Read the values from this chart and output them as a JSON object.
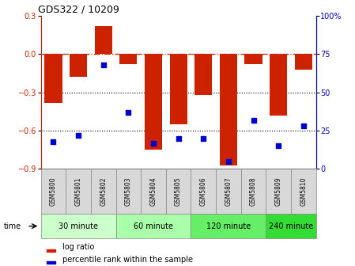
{
  "title": "GDS322 / 10209",
  "samples": [
    "GSM5800",
    "GSM5801",
    "GSM5802",
    "GSM5803",
    "GSM5804",
    "GSM5805",
    "GSM5806",
    "GSM5807",
    "GSM5808",
    "GSM5809",
    "GSM5810"
  ],
  "log_ratio": [
    -0.38,
    -0.18,
    0.22,
    -0.08,
    -0.75,
    -0.55,
    -0.32,
    -0.87,
    -0.08,
    -0.48,
    -0.12
  ],
  "percentile": [
    18,
    22,
    68,
    37,
    17,
    20,
    20,
    5,
    32,
    15,
    28
  ],
  "time_groups": [
    {
      "label": "30 minute",
      "start": 0,
      "end": 2,
      "color": "#ccffcc"
    },
    {
      "label": "60 minute",
      "start": 3,
      "end": 5,
      "color": "#aaffaa"
    },
    {
      "label": "120 minute",
      "start": 6,
      "end": 8,
      "color": "#66ee66"
    },
    {
      "label": "240 minute",
      "start": 9,
      "end": 10,
      "color": "#33dd33"
    }
  ],
  "bar_color": "#cc2200",
  "dot_color": "#0000cc",
  "ylim_left": [
    -0.9,
    0.3
  ],
  "ylim_right": [
    0,
    100
  ],
  "yticks_left": [
    -0.9,
    -0.6,
    -0.3,
    0.0,
    0.3
  ],
  "yticks_right": [
    0,
    25,
    50,
    75,
    100
  ],
  "dotline_y": [
    -0.3,
    -0.6
  ],
  "bar_width": 0.7
}
